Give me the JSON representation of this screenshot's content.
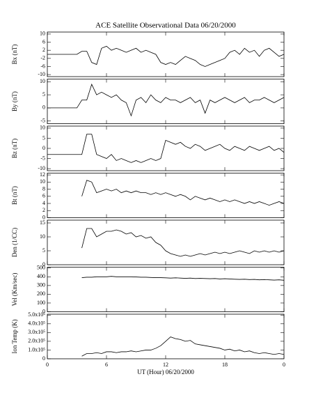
{
  "chart_data": [
    {
      "type": "line",
      "title": "ACE Satellite Observational Data  06/20/2000",
      "ylabel": "Bx (nT)",
      "color": "#000000",
      "x": [
        0,
        0.5,
        1,
        1.5,
        2,
        2.5,
        3,
        3.5,
        4,
        4.5,
        5,
        5.5,
        6,
        6.5,
        7,
        7.5,
        8,
        8.5,
        9,
        9.5,
        10,
        10.5,
        11,
        11.5,
        12,
        12.5,
        13,
        13.5,
        14,
        14.5,
        15,
        15.5,
        16,
        16.5,
        17,
        17.5,
        18,
        18.5,
        19,
        19.5,
        20,
        20.5,
        21,
        21.5,
        22,
        22.5,
        23,
        23.5,
        24
      ],
      "values": [
        0,
        0,
        0,
        0,
        0,
        0,
        0,
        1.5,
        1.5,
        -4,
        -5,
        3,
        4,
        2,
        3,
        2,
        1,
        2,
        3,
        1,
        2,
        1,
        0,
        -4,
        -5,
        -4,
        -5,
        -3,
        -1,
        -2,
        -3,
        -5,
        -6,
        -5,
        -4,
        -3,
        -2,
        1,
        2,
        0,
        3,
        1,
        2,
        -1,
        2,
        3,
        1,
        -1,
        0
      ],
      "ylim": [
        -11,
        11
      ],
      "yticks": [
        -10,
        -6,
        -2,
        2,
        6,
        10
      ]
    },
    {
      "type": "line",
      "ylabel": "By (nT)",
      "color": "#000000",
      "x": [
        0,
        0.5,
        1,
        1.5,
        2,
        2.5,
        3,
        3.5,
        4,
        4.5,
        5,
        5.5,
        6,
        6.5,
        7,
        7.5,
        8,
        8.5,
        9,
        9.5,
        10,
        10.5,
        11,
        11.5,
        12,
        12.5,
        13,
        13.5,
        14,
        14.5,
        15,
        15.5,
        16,
        16.5,
        17,
        17.5,
        18,
        18.5,
        19,
        19.5,
        20,
        20.5,
        21,
        21.5,
        22,
        22.5,
        23,
        23.5,
        24
      ],
      "values": [
        0,
        0,
        0,
        0,
        0,
        0,
        0,
        3,
        3,
        9,
        5,
        6,
        5,
        4,
        5,
        3,
        2,
        -3,
        3,
        4,
        2,
        5,
        3,
        2,
        4,
        3,
        3,
        2,
        3,
        4,
        2,
        3,
        -2,
        3,
        2,
        3,
        4,
        3,
        2,
        3,
        4,
        2,
        3,
        3,
        4,
        3,
        2,
        3,
        4
      ],
      "ylim": [
        -6,
        11
      ],
      "yticks": [
        -5,
        0,
        5,
        10
      ]
    },
    {
      "type": "line",
      "ylabel": "Bz (nT)",
      "color": "#000000",
      "x": [
        0,
        0.5,
        1,
        1.5,
        2,
        2.5,
        3,
        3.5,
        4,
        4.5,
        5,
        5.5,
        6,
        6.5,
        7,
        7.5,
        8,
        8.5,
        9,
        9.5,
        10,
        10.5,
        11,
        11.5,
        12,
        12.5,
        13,
        13.5,
        14,
        14.5,
        15,
        15.5,
        16,
        16.5,
        17,
        17.5,
        18,
        18.5,
        19,
        19.5,
        20,
        20.5,
        21,
        21.5,
        22,
        22.5,
        23,
        23.5,
        24
      ],
      "values": [
        -3,
        -3,
        -3,
        -3,
        -3,
        -3,
        -3,
        -3,
        7,
        7,
        -3,
        -4,
        -5,
        -3,
        -6,
        -5,
        -6,
        -7,
        -6,
        -7,
        -6,
        -5,
        -6,
        -5,
        4,
        3,
        2,
        3,
        1,
        0,
        2,
        1,
        -1,
        0,
        1,
        2,
        0,
        -1,
        1,
        0,
        -1,
        1,
        0,
        -1,
        0,
        1,
        -1,
        0,
        -2
      ],
      "ylim": [
        -11,
        11
      ],
      "yticks": [
        -10,
        -5,
        0,
        5,
        10
      ]
    },
    {
      "type": "line",
      "ylabel": "Bt (nT)",
      "color": "#000000",
      "x": [
        0,
        0.5,
        1,
        1.5,
        2,
        2.5,
        3,
        3.5,
        4,
        4.5,
        5,
        5.5,
        6,
        6.5,
        7,
        7.5,
        8,
        8.5,
        9,
        9.5,
        10,
        10.5,
        11,
        11.5,
        12,
        12.5,
        13,
        13.5,
        14,
        14.5,
        15,
        15.5,
        16,
        16.5,
        17,
        17.5,
        18,
        18.5,
        19,
        19.5,
        20,
        20.5,
        21,
        21.5,
        22,
        22.5,
        23,
        23.5,
        24
      ],
      "values": [
        null,
        null,
        null,
        null,
        null,
        null,
        null,
        6,
        10.5,
        10,
        7,
        7.5,
        8,
        7.5,
        8,
        7,
        7.5,
        7,
        7.5,
        7,
        7,
        6.5,
        7,
        6.5,
        7,
        6.5,
        6,
        6.5,
        6,
        5,
        6,
        5.5,
        5,
        5.5,
        5,
        4.5,
        5,
        4.5,
        5,
        4.5,
        4,
        4.5,
        4,
        4.5,
        4,
        3.5,
        4,
        4.5,
        4
      ],
      "ylim": [
        0,
        12.5
      ],
      "yticks": [
        0,
        2,
        4,
        6,
        8,
        10,
        12
      ]
    },
    {
      "type": "line",
      "ylabel": "Den (1/CC)",
      "color": "#000000",
      "x": [
        0,
        0.5,
        1,
        1.5,
        2,
        2.5,
        3,
        3.5,
        4,
        4.5,
        5,
        5.5,
        6,
        6.5,
        7,
        7.5,
        8,
        8.5,
        9,
        9.5,
        10,
        10.5,
        11,
        11.5,
        12,
        12.5,
        13,
        13.5,
        14,
        14.5,
        15,
        15.5,
        16,
        16.5,
        17,
        17.5,
        18,
        18.5,
        19,
        19.5,
        20,
        20.5,
        21,
        21.5,
        22,
        22.5,
        23,
        23.5,
        24
      ],
      "values": [
        null,
        null,
        null,
        null,
        null,
        null,
        null,
        6,
        13,
        13,
        10,
        11,
        12,
        12,
        12.5,
        12,
        11,
        11.5,
        10,
        10.5,
        9.5,
        10,
        8,
        7,
        5,
        4,
        3.5,
        3,
        3.5,
        3,
        3.5,
        4,
        3.5,
        4,
        4.5,
        4,
        4.5,
        4,
        4.5,
        5,
        4.5,
        4,
        5,
        4.5,
        5,
        4.5,
        5,
        4.5,
        5
      ],
      "ylim": [
        0,
        16
      ],
      "yticks": [
        0,
        5,
        10,
        15
      ]
    },
    {
      "type": "line",
      "ylabel": "Vel (Km/sec)",
      "color": "#000000",
      "x": [
        0,
        0.5,
        1,
        1.5,
        2,
        2.5,
        3,
        3.5,
        4,
        4.5,
        5,
        5.5,
        6,
        6.5,
        7,
        7.5,
        8,
        8.5,
        9,
        9.5,
        10,
        10.5,
        11,
        11.5,
        12,
        12.5,
        13,
        13.5,
        14,
        14.5,
        15,
        15.5,
        16,
        16.5,
        17,
        17.5,
        18,
        18.5,
        19,
        19.5,
        20,
        20.5,
        21,
        21.5,
        22,
        22.5,
        23,
        23.5,
        24
      ],
      "values": [
        null,
        null,
        null,
        null,
        null,
        null,
        null,
        390,
        395,
        395,
        400,
        400,
        400,
        405,
        400,
        400,
        400,
        400,
        398,
        395,
        395,
        392,
        390,
        390,
        388,
        385,
        388,
        385,
        382,
        385,
        380,
        382,
        380,
        378,
        380,
        375,
        378,
        375,
        372,
        370,
        372,
        368,
        370,
        365,
        368,
        365,
        362,
        365,
        360
      ],
      "ylim": [
        0,
        510
      ],
      "yticks": [
        0,
        100,
        200,
        300,
        400,
        500
      ]
    },
    {
      "type": "line",
      "ylabel": "Ion Temp (K)",
      "xlabel": "UT (Hour)  06/20/2000",
      "color": "#000000",
      "x": [
        0,
        0.5,
        1,
        1.5,
        2,
        2.5,
        3,
        3.5,
        4,
        4.5,
        5,
        5.5,
        6,
        6.5,
        7,
        7.5,
        8,
        8.5,
        9,
        9.5,
        10,
        10.5,
        11,
        11.5,
        12,
        12.5,
        13,
        13.5,
        14,
        14.5,
        15,
        15.5,
        16,
        16.5,
        17,
        17.5,
        18,
        18.5,
        19,
        19.5,
        20,
        20.5,
        21,
        21.5,
        22,
        22.5,
        23,
        23.5,
        24
      ],
      "values": [
        null,
        null,
        null,
        null,
        null,
        null,
        null,
        30000,
        60000,
        60000,
        70000,
        60000,
        80000,
        80000,
        70000,
        80000,
        80000,
        90000,
        80000,
        90000,
        100000,
        100000,
        120000,
        150000,
        200000,
        250000,
        230000,
        220000,
        200000,
        210000,
        170000,
        160000,
        150000,
        140000,
        130000,
        120000,
        100000,
        110000,
        90000,
        100000,
        80000,
        90000,
        70000,
        60000,
        70000,
        60000,
        50000,
        60000,
        50000
      ],
      "ylim": [
        0,
        510000
      ],
      "yticks": [
        0,
        {
          "value": 100000,
          "label": "1.0x10⁵"
        },
        {
          "value": 200000,
          "label": "2.0x10⁵"
        },
        {
          "value": 300000,
          "label": "3.0x10⁵"
        },
        {
          "value": 400000,
          "label": "4.0x10⁵"
        },
        {
          "value": 500000,
          "label": "5.0x10⁵"
        }
      ],
      "xlim": [
        0,
        24
      ],
      "xticks": [
        0,
        6,
        12,
        18,
        {
          "value": 24,
          "label": "0"
        }
      ]
    }
  ]
}
